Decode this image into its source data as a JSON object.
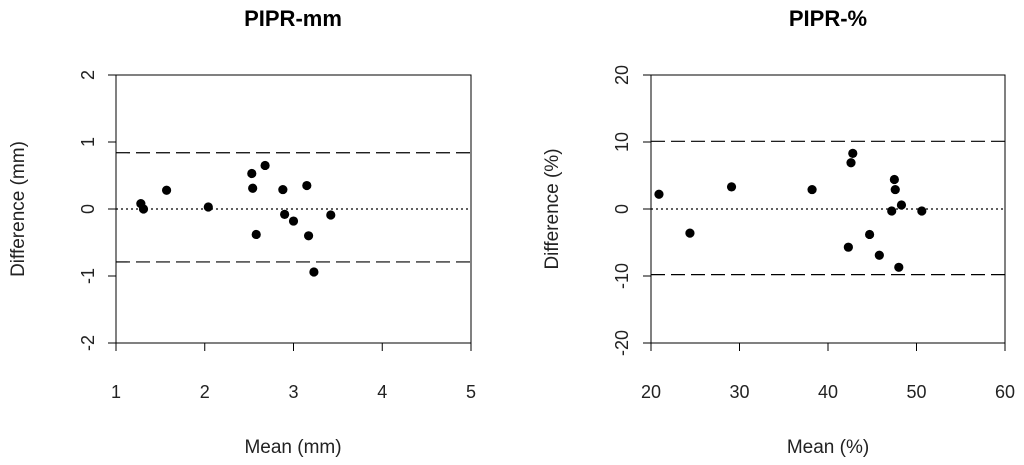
{
  "chart_data": [
    {
      "type": "scatter",
      "title": "PIPR-mm",
      "xlabel": "Mean (mm)",
      "ylabel": "Difference (mm)",
      "xlim": [
        1,
        5
      ],
      "ylim": [
        -2,
        2
      ],
      "xticks": [
        "1",
        "2",
        "3",
        "4",
        "5"
      ],
      "yticks": [
        "-2",
        "-1",
        "0",
        "1",
        "2"
      ],
      "grid": false,
      "reference_lines": [
        {
          "style": "dotted",
          "y": 0
        },
        {
          "style": "dashed",
          "y": 0.84
        },
        {
          "style": "dashed",
          "y": -0.79
        }
      ],
      "points": [
        {
          "x": 1.28,
          "y": 0.08
        },
        {
          "x": 1.31,
          "y": 0.0
        },
        {
          "x": 1.57,
          "y": 0.28
        },
        {
          "x": 2.04,
          "y": 0.03
        },
        {
          "x": 2.53,
          "y": 0.53
        },
        {
          "x": 2.54,
          "y": 0.31
        },
        {
          "x": 2.58,
          "y": -0.38
        },
        {
          "x": 2.68,
          "y": 0.65
        },
        {
          "x": 2.88,
          "y": 0.29
        },
        {
          "x": 2.9,
          "y": -0.08
        },
        {
          "x": 3.0,
          "y": -0.18
        },
        {
          "x": 3.15,
          "y": 0.35
        },
        {
          "x": 3.17,
          "y": -0.4
        },
        {
          "x": 3.23,
          "y": -0.94
        },
        {
          "x": 3.42,
          "y": -0.09
        }
      ]
    },
    {
      "type": "scatter",
      "title": "PIPR-%",
      "xlabel": "Mean (%)",
      "ylabel": "Difference (%)",
      "xlim": [
        20,
        60
      ],
      "ylim": [
        -20,
        20
      ],
      "xticks": [
        "20",
        "30",
        "40",
        "50",
        "60"
      ],
      "yticks": [
        "-20",
        "-10",
        "0",
        "10",
        "20"
      ],
      "grid": false,
      "reference_lines": [
        {
          "style": "dotted",
          "y": 0
        },
        {
          "style": "dashed",
          "y": 10.1
        },
        {
          "style": "dashed",
          "y": -9.8
        }
      ],
      "points": [
        {
          "x": 20.9,
          "y": 2.2
        },
        {
          "x": 24.4,
          "y": -3.6
        },
        {
          "x": 29.1,
          "y": 3.3
        },
        {
          "x": 38.2,
          "y": 2.9
        },
        {
          "x": 42.3,
          "y": -5.7
        },
        {
          "x": 42.6,
          "y": 6.9
        },
        {
          "x": 42.8,
          "y": 8.3
        },
        {
          "x": 44.7,
          "y": -3.8
        },
        {
          "x": 45.8,
          "y": -6.9
        },
        {
          "x": 47.2,
          "y": -0.3
        },
        {
          "x": 47.5,
          "y": 4.4
        },
        {
          "x": 47.6,
          "y": 2.9
        },
        {
          "x": 48.0,
          "y": -8.7
        },
        {
          "x": 48.3,
          "y": 0.6
        },
        {
          "x": 50.6,
          "y": -0.3
        }
      ]
    }
  ]
}
